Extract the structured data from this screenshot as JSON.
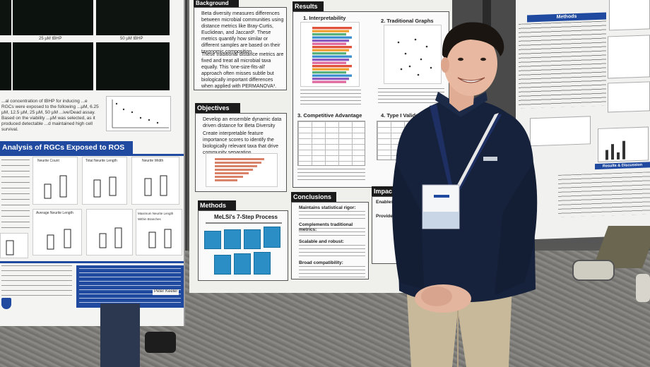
{
  "left_poster": {
    "labels": {
      "microscopy_25": "25 µM tBHP",
      "microscopy_50": "50 µM tBHP"
    },
    "paragraph_upper": "...al concentration of tBHP for inducing ...e RGCs were exposed to the following ...µM, 6.25 µM, 12.5 µM, 25 µM, 50 µM ...ive/Dead assay. Based on the viability ...µM was selected, as it produced detectable ...d maintained high cell survival.",
    "section_title": "Analysis of RGCs Exposed to ROS",
    "chart_labels": [
      "Neurite Count",
      "Total Neurite Length",
      "Neurite Width",
      "Average Neurite Length",
      "Maximum Neurite Length Within Branches"
    ],
    "bottom_people": "Peter Keeler"
  },
  "center_poster": {
    "background_title": "Background",
    "background_text": "Beta diversity measures differences between microbial communities using distance metrics like Bray-Curtis, Euclidean, and Jaccard². These metrics quantify how similar or different samples are based on their taxonomic composition.",
    "background_text_2": "These traditional distance metrics are fixed and treat all microbial taxa equally. This 'one-size-fits-all' approach often misses subtle but biologically important differences when applied with PERMANOVA³.",
    "objectives_title": "Objectives",
    "objectives": [
      "Develop an ensemble dynamic data driven distance for Beta Diversity",
      "Create interpretable feature importance scores to identify the biologically relevant taxa that drive community separation."
    ],
    "methods_title": "Methods",
    "methods_subtitle": "MeLSi's 7-Step Process",
    "results_title": "Results",
    "results_sections": [
      "1. Interpretability",
      "2. Traditional Graphs",
      "3. Competitive Advantage",
      "4. Type I Validat"
    ],
    "conclusions_title": "Conclusions",
    "conclusions": [
      "Maintains statistical rigor:",
      "Complements traditional metrics:",
      "Scalable and robust:",
      "Broad compatibility:"
    ],
    "impact_title": "Impac",
    "impact_items": [
      "Enables",
      "Provide"
    ]
  },
  "right_poster": {
    "section_methods": "Methods",
    "section_right": "Results & Discussion"
  },
  "colors": {
    "poster_bg": "#f4f4f2",
    "header_dark": "#1b1b1b",
    "header_blue": "#1f4aa0",
    "jacket": "#16223b",
    "pants": "#c8b99a",
    "lanyard": "#1e2f63"
  }
}
